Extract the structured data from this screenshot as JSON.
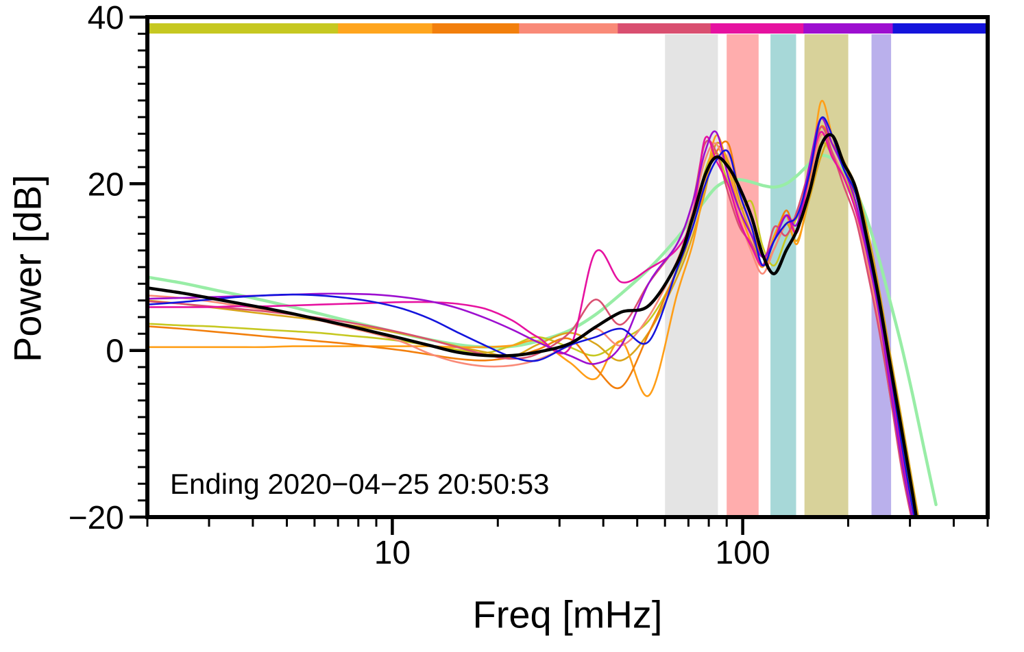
{
  "chart_data": {
    "type": "line",
    "title": "",
    "xlabel": "Freq [mHz]",
    "ylabel": "Power [dB]",
    "annotation": "Ending 2020−04−25 20:50:53",
    "x_scale": "log",
    "xlim": [
      2,
      500
    ],
    "ylim": [
      -20,
      40
    ],
    "grid": false,
    "legend": "none",
    "x_major_ticks": [
      10,
      100
    ],
    "x_major_tick_labels": [
      "10",
      "100"
    ],
    "y_major_ticks": [
      -20,
      0,
      20,
      40
    ],
    "y_major_tick_labels": [
      "−20",
      "0",
      "20",
      "40"
    ],
    "y_minor_step": 2,
    "bands": [
      {
        "name": "band-gray",
        "from": 60,
        "to": 85,
        "color": "#e4e4e4"
      },
      {
        "name": "band-pink",
        "from": 90,
        "to": 111,
        "color": "#ffadad"
      },
      {
        "name": "band-teal",
        "from": 120,
        "to": 142,
        "color": "#a7d8d8"
      },
      {
        "name": "band-olive",
        "from": 150,
        "to": 200,
        "color": "#d8d29a"
      },
      {
        "name": "band-lavender",
        "from": 233,
        "to": 265,
        "color": "#bab0ec"
      }
    ],
    "colorbar_segments": [
      {
        "from": 2,
        "to": 7,
        "color": "#c6c821"
      },
      {
        "from": 7,
        "to": 13,
        "color": "#ffa51e"
      },
      {
        "from": 13,
        "to": 23,
        "color": "#f27f0c"
      },
      {
        "from": 23,
        "to": 44,
        "color": "#f98a78"
      },
      {
        "from": 44,
        "to": 81,
        "color": "#d94f70"
      },
      {
        "from": 81,
        "to": 149,
        "color": "#e612a0"
      },
      {
        "from": 149,
        "to": 268,
        "color": "#9d0fd0"
      },
      {
        "from": 268,
        "to": 500,
        "color": "#1414dc"
      }
    ],
    "x": [
      2,
      2.5,
      3,
      3.6,
      4.3,
      5.2,
      6.2,
      7.4,
      8.9,
      10.7,
      12.8,
      15.3,
      18.4,
      22,
      26,
      32,
      38,
      45,
      54,
      65,
      72,
      78,
      84,
      91,
      98,
      106,
      114,
      123,
      133,
      143,
      155,
      167,
      180,
      194,
      210,
      226,
      244,
      263,
      284,
      306,
      330,
      356
    ],
    "series": [
      {
        "name": "smoothed-background",
        "color": "#98eda6",
        "width": 4.5,
        "values": [
          8.8,
          8.1,
          7.4,
          6.7,
          6.0,
          5.2,
          4.4,
          3.6,
          2.8,
          2.0,
          1.3,
          0.7,
          0.4,
          0.5,
          1.1,
          2.4,
          4.3,
          6.8,
          9.8,
          13.5,
          16,
          18,
          19.6,
          20.4,
          20.5,
          20.2,
          19.8,
          19.6,
          20.0,
          21.0,
          22.4,
          23.4,
          23.0,
          21.6,
          19.2,
          15.8,
          11.2,
          6.0,
          0.5,
          -5.5,
          -12,
          -18.5
        ]
      },
      {
        "name": "spectrum-yellowgreen",
        "color": "#c6c821",
        "width": 2.6,
        "values": [
          3.2,
          3.0,
          2.9,
          2.7,
          2.5,
          2.3,
          2.1,
          1.8,
          1.5,
          1.1,
          0.6,
          0.1,
          -0.3,
          0.6,
          1.6,
          0.4,
          -0.6,
          1.2,
          3.6,
          9.5,
          15,
          21.5,
          23.8,
          20,
          17,
          17.8,
          12.5,
          10.2,
          13.5,
          16,
          20,
          24.8,
          23.5,
          21,
          17.5,
          12.5,
          5.5,
          -2.5,
          -10.5,
          -18.5,
          -26,
          -33
        ]
      },
      {
        "name": "spectrum-goldenrod",
        "color": "#d9a51b",
        "width": 2.6,
        "values": [
          6.0,
          5.6,
          5.2,
          4.8,
          4.4,
          4.0,
          3.6,
          3.1,
          2.6,
          2.0,
          1.3,
          0.5,
          -0.2,
          -0.7,
          0.7,
          2.1,
          0.8,
          -1.2,
          2.2,
          8.8,
          13.8,
          19,
          24.8,
          22.6,
          17.8,
          13.8,
          10.2,
          12.2,
          15.2,
          13.2,
          18.2,
          23.2,
          25.8,
          22.8,
          19.8,
          14.8,
          7.8,
          -0.2,
          -8.2,
          -16.2,
          -24,
          -31
        ]
      },
      {
        "name": "spectrum-orange",
        "color": "#ff9e17",
        "width": 2.6,
        "values": [
          0.4,
          0.4,
          0.4,
          0.4,
          0.4,
          0.5,
          0.5,
          0.5,
          0.5,
          0.5,
          0.5,
          0.4,
          0.4,
          0.6,
          1.1,
          -1.4,
          -3.4,
          1.1,
          -5.4,
          6.8,
          12.8,
          19.8,
          25.8,
          21.8,
          16.8,
          12.8,
          10.0,
          13.8,
          16.2,
          12.8,
          19.8,
          29.8,
          25.8,
          21.8,
          18.8,
          12.8,
          4.8,
          -3.2,
          -12.2,
          -19.2,
          -27,
          -34
        ]
      },
      {
        "name": "spectrum-darkorange",
        "color": "#f27f0c",
        "width": 2.6,
        "values": [
          2.9,
          2.6,
          2.3,
          2.0,
          1.7,
          1.4,
          1.1,
          0.8,
          0.4,
          0.0,
          -0.5,
          -1.0,
          -1.2,
          -0.8,
          0.1,
          1.4,
          -2.1,
          -4.4,
          2.1,
          9.8,
          14.8,
          20.8,
          23.8,
          24.8,
          18.8,
          14.8,
          11.2,
          13.2,
          16.8,
          14.2,
          20.8,
          26.8,
          24.8,
          22.8,
          17.8,
          11.8,
          3.8,
          -5.2,
          -13.2,
          -20.2,
          -28,
          -35
        ]
      },
      {
        "name": "spectrum-salmon",
        "color": "#f98a78",
        "width": 2.6,
        "values": [
          6.6,
          6.3,
          5.9,
          5.4,
          4.9,
          4.3,
          3.6,
          2.8,
          2.0,
          1.0,
          -0.4,
          -1.4,
          -1.9,
          -1.8,
          -1.1,
          0.6,
          2.6,
          0.6,
          4.1,
          10.8,
          16.8,
          22.8,
          24.8,
          20.8,
          15.8,
          11.8,
          9.2,
          12.2,
          15.2,
          16.2,
          19.8,
          25.8,
          23.8,
          20.8,
          16.8,
          10.8,
          3.8,
          -4.2,
          -13.2,
          -20.2,
          -27,
          -34
        ]
      },
      {
        "name": "spectrum-crimson",
        "color": "#d94f70",
        "width": 2.6,
        "values": [
          5.9,
          5.6,
          5.3,
          5.0,
          4.7,
          4.3,
          3.9,
          3.4,
          2.8,
          2.1,
          1.3,
          0.4,
          -0.5,
          -1.0,
          -0.4,
          2.1,
          6.1,
          3.1,
          8.1,
          12.8,
          17.8,
          24.8,
          23.8,
          18.8,
          14.8,
          12.8,
          10.2,
          14.8,
          13.8,
          16.8,
          21.8,
          26.8,
          23.8,
          19.8,
          15.8,
          9.8,
          2.8,
          -5.2,
          -14.2,
          -21,
          -28,
          -35
        ]
      },
      {
        "name": "spectrum-magenta",
        "color": "#e612a0",
        "width": 2.6,
        "values": [
          5.2,
          5.2,
          5.2,
          5.3,
          5.3,
          5.4,
          5.5,
          5.6,
          5.7,
          5.8,
          5.8,
          5.6,
          5.0,
          3.6,
          1.6,
          0.2,
          11.8,
          8.2,
          9.8,
          12.2,
          16.2,
          25.4,
          22.8,
          19.8,
          15.4,
          12.4,
          10.2,
          13.2,
          16.2,
          14.2,
          21.2,
          26.2,
          23.2,
          20.8,
          16.8,
          11.8,
          4.8,
          -3.2,
          -12.2,
          -19.2,
          -27,
          -34
        ]
      },
      {
        "name": "spectrum-purple",
        "color": "#9d0fd0",
        "width": 2.6,
        "values": [
          6.2,
          6.3,
          6.4,
          6.5,
          6.6,
          6.7,
          6.8,
          6.8,
          6.7,
          6.4,
          5.9,
          5.1,
          3.9,
          2.5,
          1.0,
          -0.6,
          -1.6,
          0.6,
          8.1,
          12.8,
          17.8,
          23.8,
          26.2,
          20.8,
          16.8,
          13.8,
          11.2,
          13.2,
          16.2,
          15.2,
          22.2,
          27.8,
          24.8,
          21.8,
          17.8,
          11.8,
          4.8,
          -4.2,
          -13.2,
          -20.5,
          -28,
          -35
        ]
      },
      {
        "name": "spectrum-blue",
        "color": "#1414dc",
        "width": 2.6,
        "values": [
          5.5,
          5.8,
          6.1,
          6.4,
          6.6,
          6.7,
          6.6,
          6.3,
          5.8,
          5.0,
          3.8,
          2.2,
          0.6,
          -0.8,
          -1.2,
          0.6,
          1.6,
          2.6,
          1.1,
          9.8,
          14.8,
          19.8,
          22.8,
          23.8,
          18.8,
          14.8,
          10.2,
          13.2,
          15.2,
          16.2,
          21.2,
          27.8,
          25.8,
          21.8,
          18.8,
          12.8,
          5.8,
          -2.2,
          -11.2,
          -19.2,
          -26,
          -33
        ]
      },
      {
        "name": "mean-spectrum",
        "color": "#000000",
        "width": 4.5,
        "values": [
          7.5,
          6.9,
          6.3,
          5.7,
          5.1,
          4.4,
          3.7,
          3.0,
          2.2,
          1.4,
          0.6,
          -0.2,
          -0.6,
          -0.6,
          -0.2,
          0.8,
          2.8,
          4.6,
          5.4,
          10.5,
          16,
          21,
          23.2,
          22,
          19.5,
          16,
          11.5,
          9.2,
          12,
          14.5,
          19,
          24.5,
          25.8,
          22.5,
          19.5,
          13.5,
          6.5,
          -1.5,
          -9.5,
          -17.5,
          -26,
          -34
        ]
      }
    ]
  }
}
